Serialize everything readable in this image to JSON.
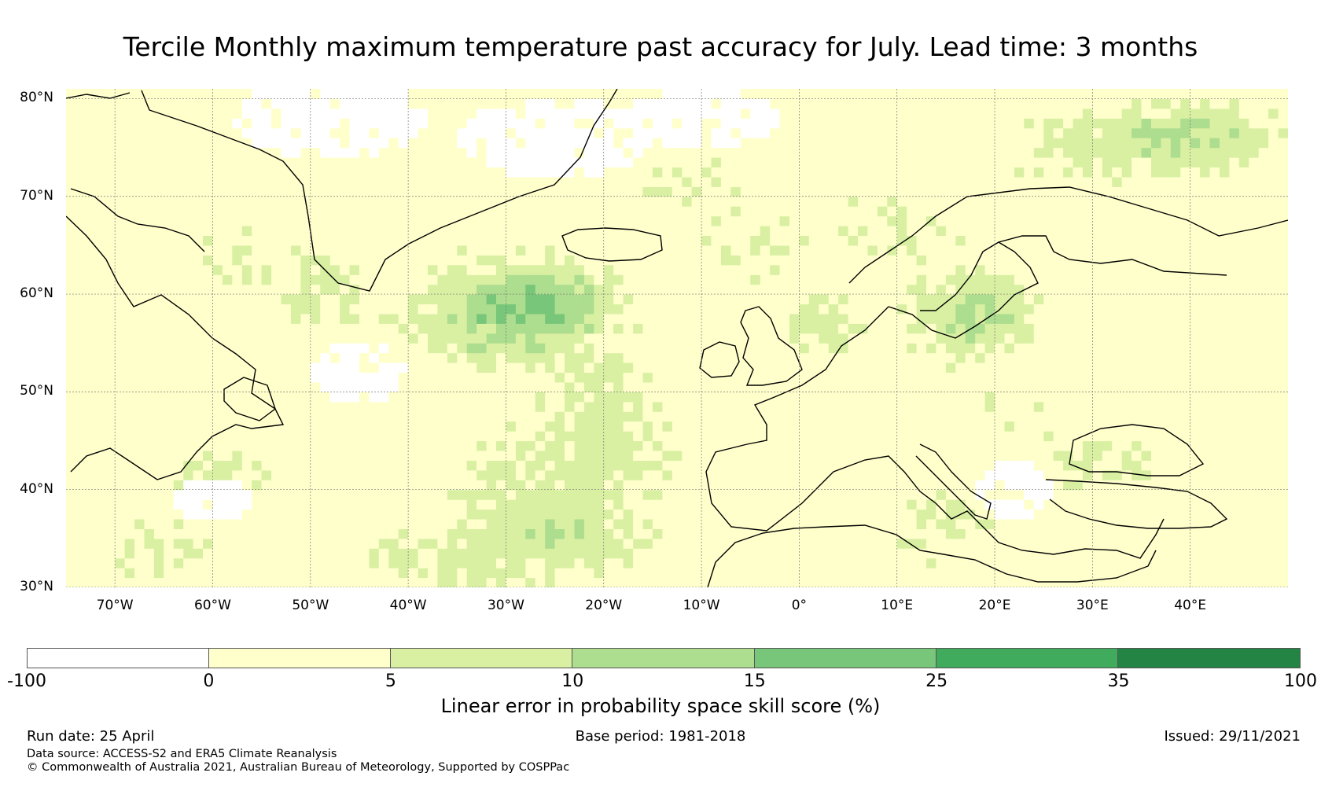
{
  "title": "Tercile Monthly maximum temperature past accuracy for July. Lead time: 3 months",
  "map": {
    "lon_range": [
      -75,
      50
    ],
    "lat_range": [
      30,
      81
    ],
    "lat_ticks": [
      "80°N",
      "70°N",
      "60°N",
      "50°N",
      "40°N",
      "30°N"
    ],
    "lat_values": [
      80,
      70,
      60,
      50,
      40,
      30
    ],
    "lon_ticks": [
      "70°W",
      "60°W",
      "50°W",
      "40°W",
      "30°W",
      "20°W",
      "10°W",
      "0°",
      "10°E",
      "20°E",
      "30°E",
      "40°E"
    ],
    "lon_values": [
      -70,
      -60,
      -50,
      -40,
      -30,
      -20,
      -10,
      0,
      10,
      20,
      30,
      40
    ],
    "gridlines": true,
    "coastlines": true
  },
  "colorbar": {
    "label": "Linear error in probability space skill score (%)",
    "ticks": [
      "-100",
      "0",
      "5",
      "10",
      "15",
      "25",
      "35",
      "100"
    ],
    "colors": [
      "#ffffff",
      "#ffffcc",
      "#d9f0a3",
      "#addd8e",
      "#78c679",
      "#41ab5d",
      "#238443"
    ]
  },
  "footer": {
    "run_date": "Run date: 25 April",
    "base_period": "Base period: 1981-2018",
    "issued": "Issued: 29/11/2021",
    "data_source": "Data source: ACCESS-S2 and ERA5 Climate Reanalysis",
    "copyright": "© Commonwealth of Australia 2021, Australian Bureau of Meteorology, Supported by COSPPac"
  }
}
